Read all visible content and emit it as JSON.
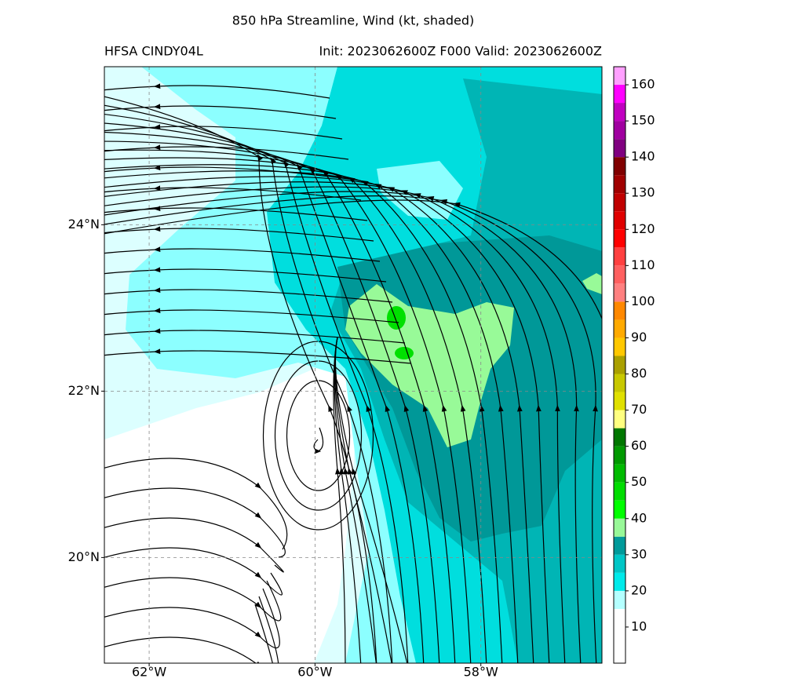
{
  "title": "850 hPa Streamline, Wind (kt, shaded)",
  "subtitle_left": "HFSA CINDY04L",
  "subtitle_right": "Init: 2023062600Z F000 Valid: 2023062600Z",
  "map": {
    "xlim": [
      -62.54,
      -56.54
    ],
    "ylim": [
      18.73,
      25.9
    ],
    "xticks": [
      {
        "value": -62,
        "label": "62°W"
      },
      {
        "value": -60,
        "label": "60°W"
      },
      {
        "value": -58,
        "label": "58°W"
      }
    ],
    "yticks": [
      {
        "value": 20,
        "label": "20°N"
      },
      {
        "value": 22,
        "label": "22°N"
      },
      {
        "value": 24,
        "label": "24°N"
      }
    ],
    "grid": true
  },
  "colorbar": {
    "boundaries": [
      0,
      15,
      20,
      25,
      30,
      35,
      40,
      45,
      50,
      55,
      60,
      65,
      70,
      75,
      80,
      85,
      90,
      95,
      100,
      105,
      110,
      115,
      120,
      125,
      130,
      135,
      140,
      145,
      150,
      155,
      160,
      165
    ],
    "colors": [
      "#ffffff",
      "#b4ffff",
      "#00eaea",
      "#00c6c6",
      "#009a9a",
      "#98f898",
      "#00ff00",
      "#00dd00",
      "#00bb00",
      "#009900",
      "#007700",
      "#ffff80",
      "#e0e000",
      "#c8c800",
      "#aaa000",
      "#ffc800",
      "#ffaa00",
      "#ff8800",
      "#ff8080",
      "#ff6060",
      "#ff4040",
      "#ff0000",
      "#e00000",
      "#c00000",
      "#a00000",
      "#800000",
      "#800080",
      "#a000a0",
      "#c000c0",
      "#ff00ff",
      "#ffa0ff"
    ],
    "ticks": [
      10,
      20,
      30,
      40,
      50,
      60,
      70,
      80,
      90,
      100,
      110,
      120,
      130,
      140,
      150,
      160
    ]
  }
}
